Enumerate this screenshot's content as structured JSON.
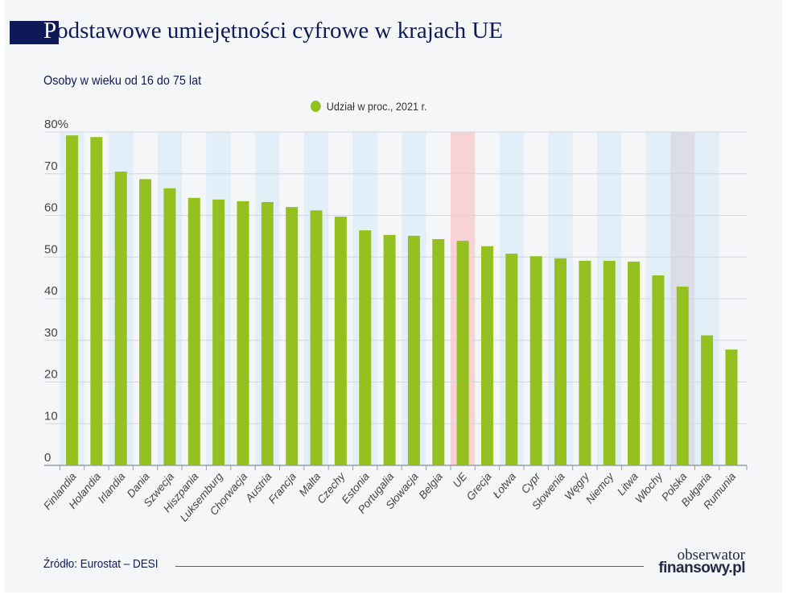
{
  "title": "Podstawowe umiejętności cyfrowe w krajach UE",
  "title_first": "P",
  "title_rest": "odstawowe umiejętności cyfrowe w krajach UE",
  "subtitle": "Osoby w wieku od 16 do 75 lat",
  "source": "Źródło: Eurostat – DESI",
  "logo": {
    "line1": "obserwator",
    "line2": "finansowy.pl"
  },
  "colors": {
    "bar": "#94c11f",
    "band_blue": "#e2eef8",
    "band_eu": "#f8d3d6",
    "band_poland": "#dcdde6",
    "title_navy": "#0d1a57",
    "eu_label": "#e84850",
    "poland_label": "#1a2a8a"
  },
  "chart_data": {
    "type": "bar",
    "title": "Podstawowe umiejętności cyfrowe w krajach UE",
    "subtitle": "Osoby w wieku od 16 do 75 lat",
    "legend": {
      "position": "top-center",
      "entries": [
        "Udział w proc., 2021 r."
      ]
    },
    "series": [
      {
        "name": "Udział w proc., 2021 r.",
        "values": [
          79.2,
          78.8,
          70.5,
          68.7,
          66.5,
          64.2,
          63.8,
          63.4,
          63.2,
          62.0,
          61.2,
          59.7,
          56.4,
          55.3,
          55.1,
          54.3,
          53.9,
          52.6,
          50.8,
          50.2,
          49.7,
          49.1,
          49.1,
          48.9,
          45.6,
          42.9,
          31.2,
          27.8
        ]
      }
    ],
    "categories": [
      "Finlandia",
      "Holandia",
      "Irlandia",
      "Dania",
      "Szwecja",
      "Hiszpania",
      "Luksemburg",
      "Chorwacja",
      "Austria",
      "Francja",
      "Malta",
      "Czechy",
      "Estonia",
      "Portugalia",
      "Słowacja",
      "Belgia",
      "UE",
      "Grecja",
      "Łotwa",
      "Cypr",
      "Słowenia",
      "Węgry",
      "Niemcy",
      "Litwa",
      "Włochy",
      "Polska",
      "Bułgaria",
      "Rumunia"
    ],
    "highlight": {
      "UE": "eu",
      "Polska": "poland"
    },
    "ylim": [
      0,
      80
    ],
    "yticks": [
      "0",
      "10",
      "20",
      "30",
      "40",
      "50",
      "60",
      "70",
      "80%"
    ],
    "grid": true,
    "xlabel": "",
    "ylabel": ""
  }
}
